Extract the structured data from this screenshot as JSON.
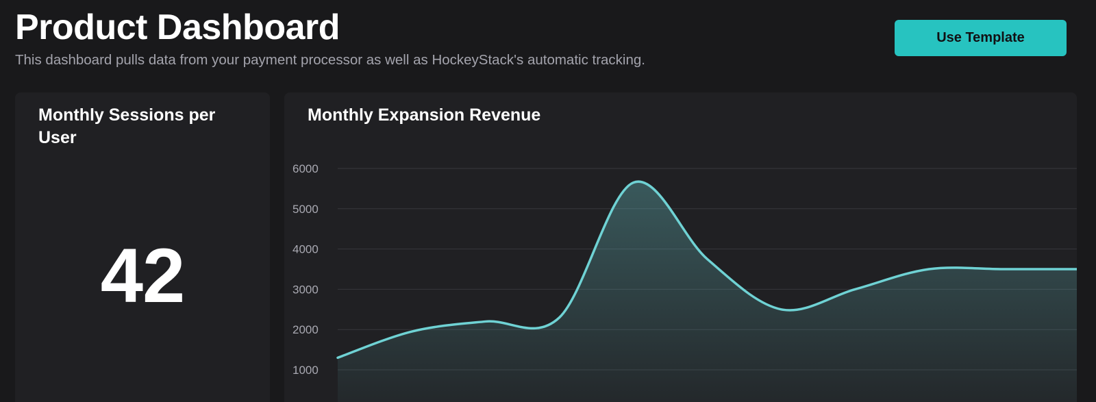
{
  "header": {
    "title": "Product Dashboard",
    "subtitle": "This dashboard pulls data from your payment processor as well as HockeyStack's automatic tracking.",
    "cta_label": "Use Template"
  },
  "colors": {
    "background": "#19191b",
    "card": "#202023",
    "accent": "#27c3c0",
    "line": "#6fd2d4",
    "grid": "#37373d"
  },
  "cards": {
    "sessions": {
      "title": "Monthly Sessions per User",
      "value": "42"
    },
    "revenue": {
      "title": "Monthly Expansion Revenue"
    }
  },
  "chart_data": {
    "type": "area",
    "title": "Monthly Expansion Revenue",
    "xlabel": "",
    "ylabel": "",
    "x": [
      0,
      1,
      2,
      3,
      4,
      5,
      6,
      7,
      8,
      9,
      10
    ],
    "values": [
      1300,
      1950,
      2200,
      2300,
      5650,
      3750,
      2500,
      3000,
      3500,
      3500,
      3500
    ],
    "yticks": [
      1000,
      2000,
      3000,
      4000,
      5000,
      6000
    ],
    "ylim": [
      0,
      6000
    ],
    "grid": true,
    "legend": "none"
  }
}
